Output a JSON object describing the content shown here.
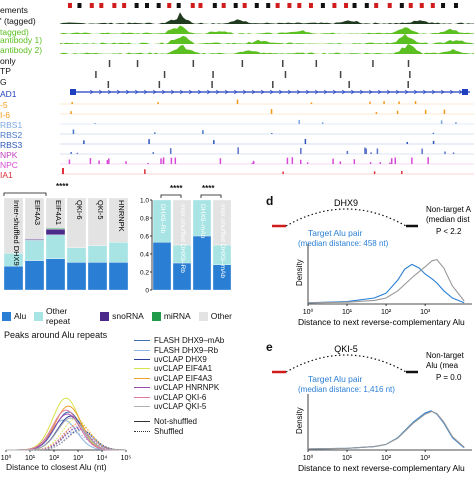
{
  "genome_browser": {
    "track_labels": [
      {
        "text": "ements",
        "color": "#111111"
      },
      {
        "text": "' (tagged)",
        "color": "#111111"
      },
      {
        "text": "tagged)",
        "color": "#5bbf21"
      },
      {
        "text": "antibody 1)",
        "color": "#5bbf21"
      },
      {
        "text": "antibody 2)",
        "color": "#5bbf21"
      },
      {
        "text": "only",
        "color": "#111111"
      },
      {
        "text": "TP",
        "color": "#111111"
      },
      {
        "text": "G",
        "color": "#111111"
      },
      {
        "text": "AD1",
        "color": "#1f3fbf"
      },
      {
        "text": "-5",
        "color": "#f39a1c"
      },
      {
        "text": "I-6",
        "color": "#f39a1c"
      },
      {
        "text": "RBS1",
        "color": "#7aa7e0"
      },
      {
        "text": "RBS2",
        "color": "#4a78c8"
      },
      {
        "text": "RBS3",
        "color": "#2a56b8"
      },
      {
        "text": "NPK",
        "color": "#c03fc0"
      },
      {
        "text": "NPC",
        "color": "#d64ad6"
      },
      {
        "text": "IA1",
        "color": "#e0303a"
      }
    ]
  },
  "bar_chart_left": {
    "significance": "****",
    "categories": [
      "Inter-shuffled DHX9",
      "EIF4A3",
      "EIF4A1",
      "QKI-6",
      "QKI-5",
      "HNRNPK"
    ]
  },
  "bar_chart_right": {
    "significance_1": "****",
    "significance_2": "****",
    "categories": [
      "DHX9–Rb",
      "Inter-shuffled DHX9–Rb",
      "DHX9–mAb",
      "Inter-shuffled DHX9–mAb"
    ],
    "y_ticks": [
      "1.0",
      "0.8",
      "0.6",
      "0.4",
      "0.2",
      "0"
    ]
  },
  "category_legend": [
    {
      "label": "Alu",
      "color": "#2a7fd4"
    },
    {
      "label": "Other repeat",
      "color": "#a8e4e4"
    },
    {
      "label": "snoRNA",
      "color": "#4b2a8c"
    },
    {
      "label": "miRNA",
      "color": "#1f9b4a"
    },
    {
      "label": "Other",
      "color": "#e3e3e3"
    }
  ],
  "peaks_panel": {
    "title": "Peaks around Alu repeats",
    "series": [
      {
        "label": "FLASH DHX9–mAb",
        "color": "#3a6fb0"
      },
      {
        "label": "FLASH DHX9–Rb",
        "color": "#8fb5e0"
      },
      {
        "label": "uvCLAP DHX9",
        "color": "#2b3f9a"
      },
      {
        "label": "uvCLAP EIF4A1",
        "color": "#d8e04a"
      },
      {
        "label": "uvCLAP EIF4A3",
        "color": "#f0a030"
      },
      {
        "label": "uvCLAP HNRNPK",
        "color": "#9a4ab0"
      },
      {
        "label": "uvCLAP QKI-6",
        "color": "#e07aa0"
      },
      {
        "label": "uvCLAP QKI-5",
        "color": "#b0b0b0"
      }
    ],
    "style_legend": [
      {
        "label": "Not-shuffled",
        "style": "solid"
      },
      {
        "label": "Shuffled",
        "style": "dotted"
      }
    ],
    "xlabel": "Distance to closest Alu (nt)",
    "x_ticks": [
      "10⁰",
      "10¹",
      "10²",
      "10³",
      "10⁴",
      "10⁵"
    ]
  },
  "panel_d": {
    "letter": "d",
    "protein": "DHX9",
    "target_label": "Target Alu pair",
    "target_median": "(median distance: 458 nt)",
    "nontarget_label": "Non-target A",
    "nontarget_median": "(median dist",
    "pvalue": "P < 2.2",
    "ylabel": "Density",
    "xlabel": "Distance to next reverse-complementary Alu",
    "x_ticks": [
      "10⁰",
      "10¹",
      "10²",
      "10³"
    ],
    "chart_data": {
      "type": "line",
      "x_scale": "log",
      "series": [
        {
          "name": "Target Alu pair",
          "x": [
            1,
            10,
            50,
            100,
            200,
            300,
            458,
            700,
            1000,
            1500,
            2000,
            3000,
            5000,
            10000
          ],
          "y": [
            0.02,
            0.04,
            0.1,
            0.18,
            0.4,
            0.58,
            0.66,
            0.6,
            0.5,
            0.42,
            0.35,
            0.22,
            0.1,
            0.02
          ]
        },
        {
          "name": "Non-target",
          "x": [
            1,
            10,
            50,
            100,
            200,
            500,
            1000,
            1500,
            2000,
            3000,
            5000,
            10000
          ],
          "y": [
            0.02,
            0.03,
            0.06,
            0.1,
            0.22,
            0.46,
            0.62,
            0.72,
            0.74,
            0.6,
            0.3,
            0.05
          ]
        }
      ]
    }
  },
  "panel_e": {
    "letter": "e",
    "protein": "QKI-5",
    "target_label": "Target Alu pair",
    "target_median": "(median distance: 1,416 nt)",
    "nontarget_label": "Non-target",
    "nontarget_median": "Alu (mea",
    "pvalue": "P = 0.0",
    "ylabel": "Density",
    "xlabel": "Distance to next reverse-complementary Alu",
    "x_ticks": [
      "10⁰",
      "10¹",
      "10²",
      "10³"
    ],
    "chart_data": {
      "type": "line",
      "x_scale": "log",
      "series": [
        {
          "name": "Target Alu pair",
          "x": [
            1,
            10,
            50,
            100,
            200,
            500,
            1000,
            1416,
            2000,
            3000,
            5000,
            10000
          ],
          "y": [
            0.02,
            0.03,
            0.06,
            0.1,
            0.22,
            0.5,
            0.66,
            0.7,
            0.64,
            0.48,
            0.22,
            0.04
          ]
        },
        {
          "name": "Non-target",
          "x": [
            1,
            10,
            50,
            100,
            200,
            500,
            1000,
            1500,
            2000,
            3000,
            5000,
            10000
          ],
          "y": [
            0.02,
            0.03,
            0.06,
            0.1,
            0.21,
            0.48,
            0.64,
            0.69,
            0.65,
            0.5,
            0.24,
            0.05
          ]
        }
      ]
    }
  }
}
